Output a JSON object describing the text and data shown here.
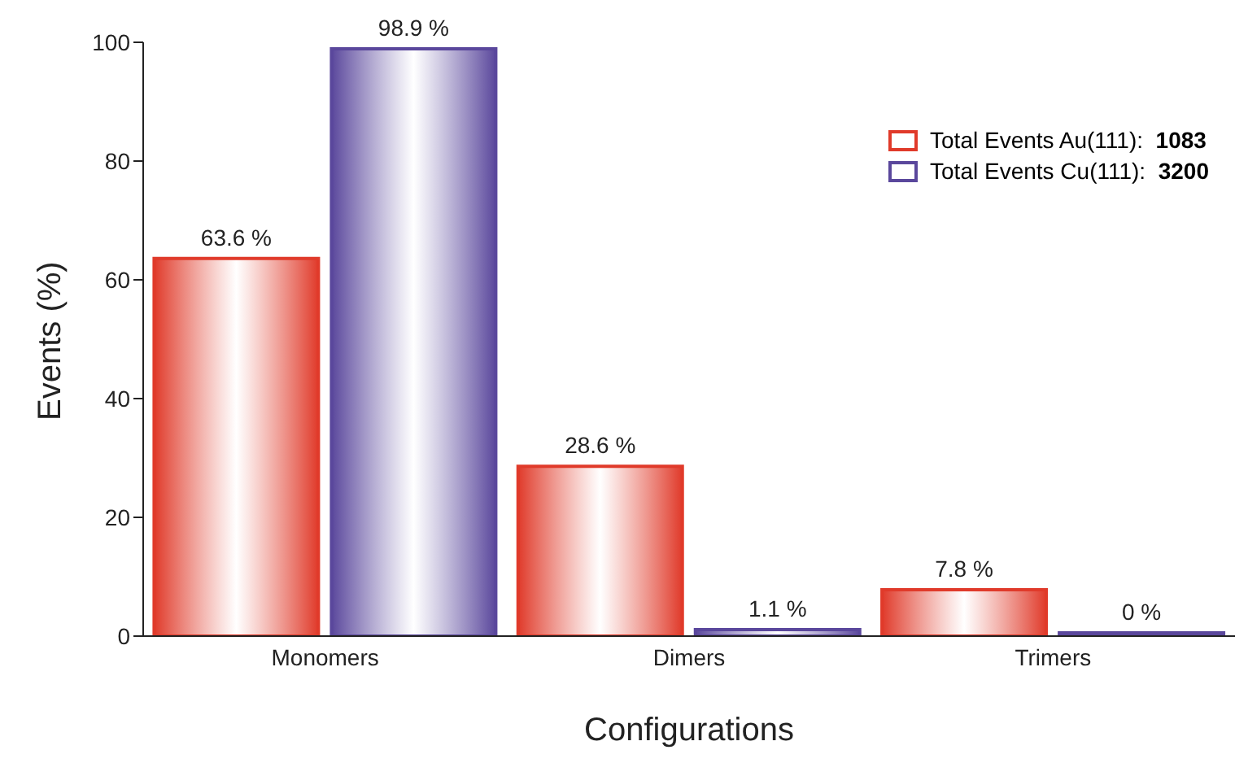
{
  "chart_data": {
    "type": "bar",
    "xlabel": "Configurations",
    "ylabel": "Events (%)",
    "categories": [
      "Monomers",
      "Dimers",
      "Trimers"
    ],
    "series": [
      {
        "name": "Total Events Au(111):  1083",
        "color": "#e03a2a",
        "values": [
          63.6,
          28.6,
          7.8
        ],
        "value_labels": [
          "63.6 %",
          "28.6 %",
          "7.8 %"
        ]
      },
      {
        "name": "Total Events Cu(111):  3200",
        "color": "#5a479c",
        "values": [
          98.9,
          1.1,
          0
        ],
        "value_labels": [
          "98.9 %",
          "1.1 %",
          "0 %"
        ]
      }
    ],
    "ylim": [
      0,
      100
    ],
    "yticks": [
      0,
      20,
      40,
      60,
      80,
      100
    ],
    "grid": false,
    "legend": "top right"
  }
}
